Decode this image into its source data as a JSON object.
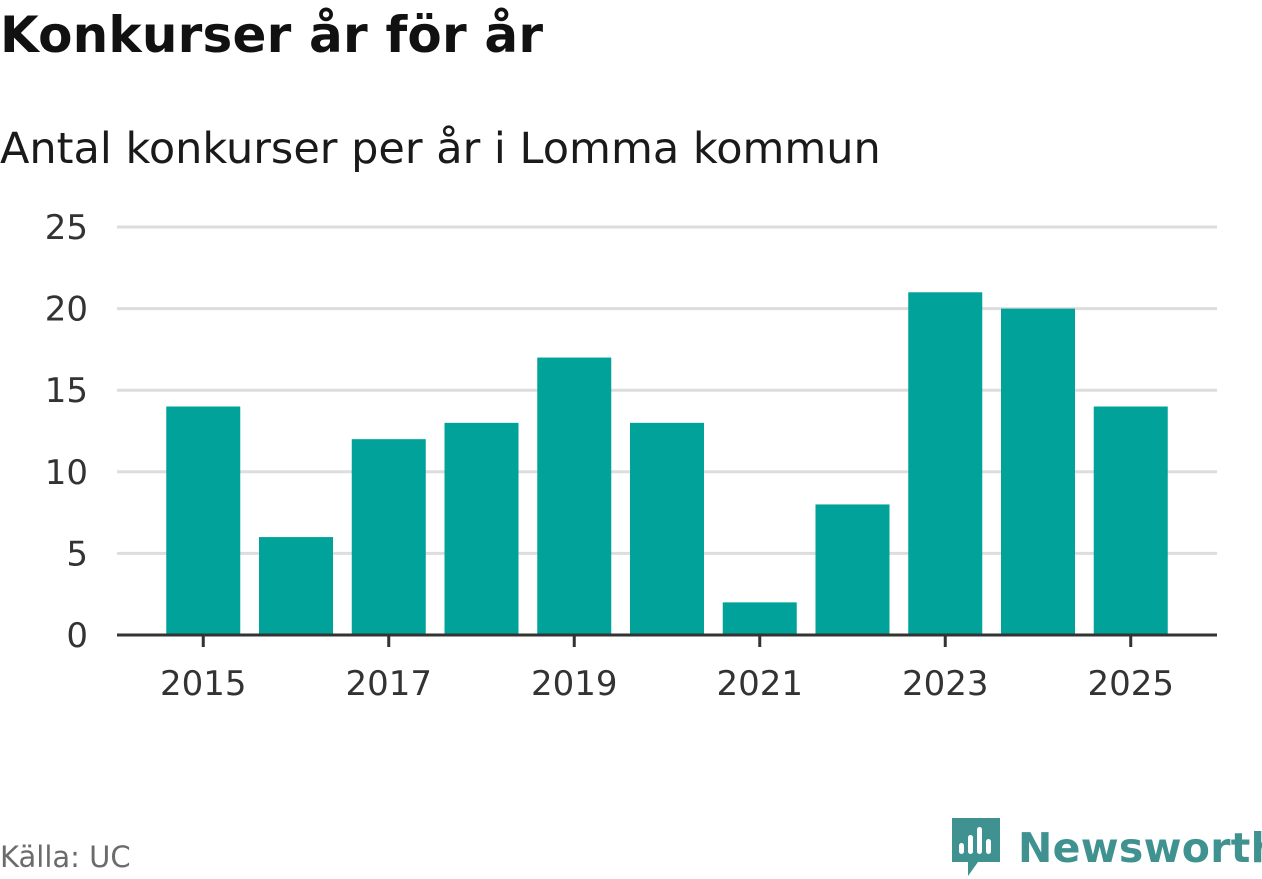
{
  "colors": {
    "bar": "#00a29a",
    "grid": "#dddddd",
    "axis": "#333333",
    "brand": "#3f9290"
  },
  "chart_data": {
    "type": "bar",
    "title": "Konkurser år för år",
    "subtitle": "Antal konkurser per år i Lomma kommun",
    "xlabel": "",
    "ylabel": "",
    "categories": [
      "2015",
      "2016",
      "2017",
      "2018",
      "2019",
      "2020",
      "2021",
      "2022",
      "2023",
      "2024",
      "2025"
    ],
    "values": [
      14,
      6,
      12,
      13,
      17,
      13,
      2,
      8,
      21,
      20,
      14
    ],
    "x_tick_labels": [
      "2015",
      "2017",
      "2019",
      "2021",
      "2023",
      "2025"
    ],
    "y_ticks": [
      0,
      5,
      10,
      15,
      20,
      25
    ],
    "ylim": [
      0,
      25
    ],
    "grid": true,
    "legend": "none"
  },
  "footer": {
    "source": "Källa: UC",
    "brand_icon": "newsworthy-logo-icon",
    "brand_name": "Newsworthy"
  }
}
